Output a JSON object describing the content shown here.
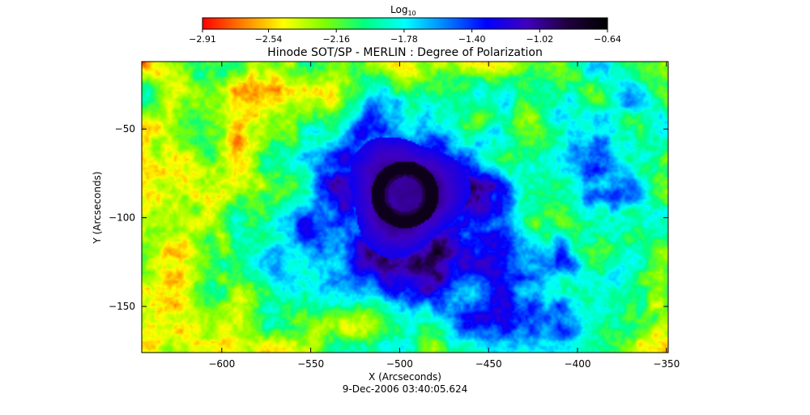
{
  "chart_data": {
    "type": "heatmap",
    "title": "Hinode SOT/SP - MERLIN : Degree of Polarization",
    "xlabel": "X (Arcseconds)",
    "ylabel": "Y (Arcseconds)",
    "footer": "9-Dec-2006 03:40:05.624",
    "xlim": [
      -645,
      -349
    ],
    "ylim": [
      -176,
      -12
    ],
    "x_ticks": [
      -600,
      -550,
      -500,
      -450,
      -400,
      -350
    ],
    "x_tick_labels": [
      "−600",
      "−550",
      "−500",
      "−450",
      "−400",
      "−350"
    ],
    "y_ticks": [
      -50,
      -100,
      -150
    ],
    "y_tick_labels": [
      "−50",
      "−100",
      "−150"
    ],
    "colorbar": {
      "label_main": "Log",
      "label_sub": "10",
      "range": [
        -2.91,
        -0.64
      ],
      "ticks": [
        -2.91,
        -2.54,
        -2.16,
        -1.78,
        -1.4,
        -1.02,
        -0.64
      ],
      "tick_labels": [
        "−2.91",
        "−2.54",
        "−2.16",
        "−1.78",
        "−1.40",
        "−1.02",
        "−0.64"
      ],
      "colormap": [
        "#ff0000",
        "#ff8000",
        "#ffff00",
        "#80ff00",
        "#00ff80",
        "#00ffff",
        "#0080ff",
        "#0000ff",
        "#4000c0",
        "#200040",
        "#000000"
      ]
    },
    "features": {
      "sunspot_center": [
        -497,
        -87
      ],
      "umbra_radius": 18,
      "penumbra_radius": 33,
      "plage_regions": [
        {
          "center": [
            -385,
            -62
          ],
          "radius": 40
        },
        {
          "center": [
            -470,
            -140
          ],
          "radius": 35
        },
        {
          "center": [
            -560,
            -115
          ],
          "radius": 25
        },
        {
          "center": [
            -415,
            -150
          ],
          "radius": 30
        }
      ]
    }
  }
}
